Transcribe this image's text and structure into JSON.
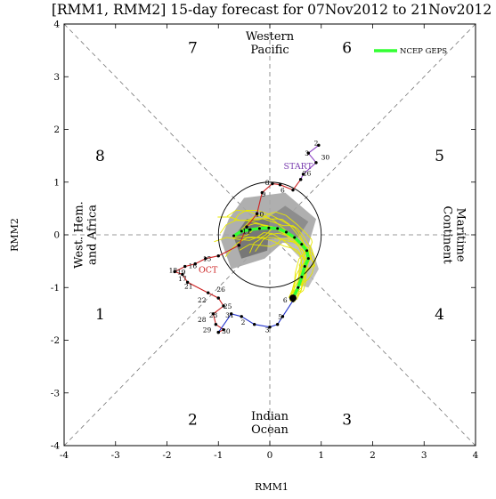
{
  "chart_data": {
    "type": "line",
    "title": "[RMM1, RMM2] 15-day forecast for 07Nov2012 to 21Nov2012",
    "xlabel": "RMM1",
    "ylabel": "RMM2",
    "xlim": [
      -4,
      4
    ],
    "ylim": [
      -4,
      4
    ],
    "x_ticks": [
      "-4",
      "-3",
      "-2",
      "-1",
      "0",
      "1",
      "2",
      "3",
      "4"
    ],
    "y_ticks": [
      "-4",
      "-3",
      "-2",
      "-1",
      "0",
      "1",
      "2",
      "3",
      "4"
    ],
    "grid": false,
    "legend_position": "top-right",
    "legend": [
      {
        "name": "NCEP GEPS",
        "color": "#33ff33"
      }
    ],
    "phase_numbers": [
      {
        "label": "1",
        "x": -3.3,
        "y": -1.5
      },
      {
        "label": "2",
        "x": -1.5,
        "y": -3.5
      },
      {
        "label": "3",
        "x": 1.5,
        "y": -3.5
      },
      {
        "label": "4",
        "x": 3.3,
        "y": -1.5
      },
      {
        "label": "5",
        "x": 3.3,
        "y": 1.5
      },
      {
        "label": "6",
        "x": 1.5,
        "y": 3.55
      },
      {
        "label": "7",
        "x": -1.5,
        "y": 3.55
      },
      {
        "label": "8",
        "x": -3.3,
        "y": 1.5
      }
    ],
    "region_labels": [
      {
        "lines": [
          "Western",
          "Pacific"
        ],
        "x": 0,
        "y": 3.65,
        "rotate": 0
      },
      {
        "lines": [
          "Indian",
          "Ocean"
        ],
        "x": 0,
        "y": -3.55,
        "rotate": 0
      },
      {
        "lines": [
          "West. Hem.",
          "and Africa"
        ],
        "x": -3.6,
        "y": 0,
        "rotate": -90
      },
      {
        "lines": [
          "Maritime",
          "Continent"
        ],
        "x": 3.6,
        "y": 0,
        "rotate": 90
      }
    ],
    "month_labels": [
      {
        "text": "START",
        "x": 0.55,
        "y": 1.3,
        "color": "#7b3fb0"
      },
      {
        "text": "OCT",
        "x": -1.2,
        "y": -0.67,
        "color": "#cc2222"
      }
    ],
    "reference_circle_radius": 1,
    "observed_segments": [
      {
        "name": "September (purple)",
        "color": "#8b3fc4",
        "points": [
          [
            0.95,
            1.7
          ],
          [
            0.75,
            1.55
          ],
          [
            0.9,
            1.37
          ],
          [
            0.65,
            1.15
          ],
          [
            0.6,
            1.05
          ]
        ]
      },
      {
        "name": "October (red)",
        "color": "#cc2222",
        "points": [
          [
            0.6,
            1.05
          ],
          [
            0.45,
            0.85
          ],
          [
            0.2,
            0.95
          ],
          [
            0.05,
            0.97
          ],
          [
            -0.15,
            0.8
          ],
          [
            -0.25,
            0.4
          ],
          [
            -0.45,
            0.15
          ],
          [
            -0.6,
            -0.2
          ],
          [
            -1.0,
            -0.4
          ],
          [
            -1.25,
            -0.45
          ],
          [
            -1.45,
            -0.55
          ],
          [
            -1.65,
            -0.6
          ],
          [
            -1.85,
            -0.7
          ],
          [
            -1.7,
            -0.75
          ],
          [
            -1.6,
            -0.9
          ],
          [
            -1.2,
            -1.1
          ],
          [
            -1.0,
            -1.2
          ],
          [
            -0.9,
            -1.35
          ],
          [
            -1.1,
            -1.5
          ],
          [
            -1.05,
            -1.7
          ],
          [
            -0.9,
            -1.8
          ],
          [
            -1.0,
            -1.85
          ]
        ]
      },
      {
        "name": "November (blue)",
        "color": "#2233cc",
        "points": [
          [
            -1.0,
            -1.85
          ],
          [
            -0.75,
            -1.5
          ],
          [
            -0.55,
            -1.55
          ],
          [
            -0.3,
            -1.7
          ],
          [
            0.0,
            -1.75
          ],
          [
            0.15,
            -1.7
          ],
          [
            0.25,
            -1.55
          ],
          [
            0.45,
            -1.25
          ]
        ]
      }
    ],
    "point_labels": [
      {
        "text": "2",
        "x": 0.9,
        "y": 1.75
      },
      {
        "text": "3",
        "x": 0.72,
        "y": 1.55
      },
      {
        "text": "30",
        "x": 1.08,
        "y": 1.48
      },
      {
        "text": "26",
        "x": 0.72,
        "y": 1.17
      },
      {
        "text": "8",
        "x": -0.05,
        "y": 1.0
      },
      {
        "text": "9",
        "x": -0.12,
        "y": 0.78
      },
      {
        "text": "6",
        "x": 0.25,
        "y": 0.85
      },
      {
        "text": "10",
        "x": -0.2,
        "y": 0.4
      },
      {
        "text": "11",
        "x": -0.45,
        "y": 0.08
      },
      {
        "text": "15",
        "x": -1.22,
        "y": -0.45
      },
      {
        "text": "16",
        "x": -1.5,
        "y": -0.58
      },
      {
        "text": "18",
        "x": -1.88,
        "y": -0.67
      },
      {
        "text": "19",
        "x": -1.72,
        "y": -0.7
      },
      {
        "text": "17",
        "x": -1.7,
        "y": -0.83
      },
      {
        "text": "21",
        "x": -1.58,
        "y": -0.97
      },
      {
        "text": "26",
        "x": -0.95,
        "y": -1.03
      },
      {
        "text": "22",
        "x": -1.32,
        "y": -1.23
      },
      {
        "text": "25",
        "x": -0.82,
        "y": -1.35
      },
      {
        "text": "23",
        "x": -1.1,
        "y": -1.52
      },
      {
        "text": "31",
        "x": -0.78,
        "y": -1.52
      },
      {
        "text": "28",
        "x": -1.32,
        "y": -1.6
      },
      {
        "text": "29",
        "x": -1.22,
        "y": -1.8
      },
      {
        "text": "30",
        "x": -0.85,
        "y": -1.82
      },
      {
        "text": "2",
        "x": -0.52,
        "y": -1.65
      },
      {
        "text": "3",
        "x": -0.05,
        "y": -1.8
      },
      {
        "text": "5",
        "x": 0.2,
        "y": -1.55
      },
      {
        "text": "6",
        "x": 0.3,
        "y": -1.23
      }
    ],
    "series": [
      {
        "name": "NCEP GEPS",
        "color": "#33ff33",
        "points": [
          [
            0.45,
            -1.2
          ],
          [
            0.55,
            -1.0
          ],
          [
            0.62,
            -0.8
          ],
          [
            0.68,
            -0.6
          ],
          [
            0.75,
            -0.45
          ],
          [
            0.72,
            -0.3
          ],
          [
            0.62,
            -0.18
          ],
          [
            0.48,
            -0.05
          ],
          [
            0.32,
            0.05
          ],
          [
            0.15,
            0.12
          ],
          [
            -0.02,
            0.13
          ],
          [
            -0.2,
            0.12
          ],
          [
            -0.38,
            0.1
          ],
          [
            -0.55,
            0.07
          ],
          [
            -0.7,
            -0.02
          ]
        ]
      }
    ],
    "ensemble_shading": "gray",
    "ensemble_member_color": "#e8e800"
  }
}
